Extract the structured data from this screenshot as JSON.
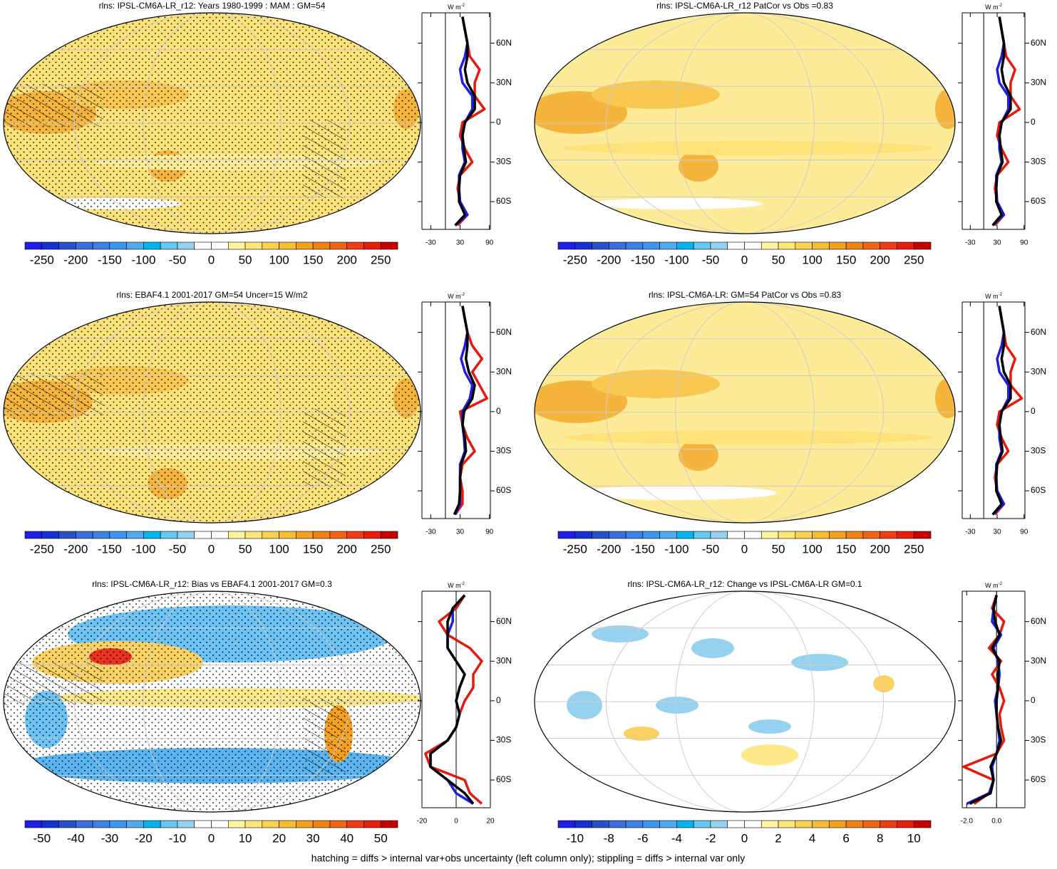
{
  "panels": [
    {
      "title": "rlns: IPSL-CM6A-LR_r12: Years 1980-1999 : MAM : GM=54",
      "colorbar": [
        -250,
        -200,
        -150,
        -100,
        -50,
        0,
        50,
        100,
        150,
        200,
        250
      ],
      "profile": {
        "xlim": [
          -48,
          92
        ],
        "xticks": [
          -30,
          30,
          90
        ],
        "lat": [
          -78,
          -70,
          -60,
          -50,
          -40,
          -30,
          -20,
          -10,
          0,
          10,
          20,
          30,
          40,
          50,
          60,
          70,
          80
        ],
        "series": [
          {
            "color": "#e6190f",
            "values": [
              25,
              45,
              30,
              25,
              30,
              55,
              40,
              30,
              35,
              80,
              60,
              60,
              70,
              50,
              45,
              40,
              35
            ]
          },
          {
            "color": "#1e1ee6",
            "values": [
              20,
              45,
              30,
              28,
              28,
              40,
              35,
              35,
              40,
              55,
              55,
              35,
              30,
              40,
              45,
              40,
              35
            ]
          },
          {
            "color": "#000000",
            "values": [
              20,
              40,
              28,
              28,
              30,
              42,
              38,
              35,
              40,
              60,
              60,
              45,
              40,
              45,
              45,
              40,
              35
            ]
          }
        ]
      }
    },
    {
      "title": "rlns: IPSL-CM6A-LR_r12 PatCor vs Obs =0.83",
      "colorbar": [
        -250,
        -200,
        -150,
        -100,
        -50,
        0,
        50,
        100,
        150,
        200,
        250
      ],
      "profile": {
        "xlim": [
          -48,
          92
        ],
        "xticks": [
          -30,
          30,
          90
        ],
        "lat": [
          -78,
          -70,
          -60,
          -50,
          -40,
          -30,
          -20,
          -10,
          0,
          10,
          20,
          30,
          40,
          50,
          60,
          70,
          80
        ],
        "series": [
          {
            "color": "#e6190f",
            "values": [
              25,
              45,
              30,
              25,
              30,
              55,
              40,
              30,
              35,
              80,
              60,
              60,
              70,
              50,
              45,
              40,
              35
            ]
          },
          {
            "color": "#1e1ee6",
            "values": [
              20,
              45,
              30,
              28,
              28,
              40,
              35,
              35,
              40,
              55,
              55,
              35,
              30,
              40,
              45,
              40,
              35
            ]
          },
          {
            "color": "#000000",
            "values": [
              20,
              40,
              28,
              28,
              30,
              42,
              38,
              35,
              40,
              60,
              60,
              45,
              40,
              45,
              45,
              40,
              35
            ]
          }
        ]
      }
    },
    {
      "title": "rlns: EBAF4.1 2001-2017 GM=54 Uncer=15 W/m2",
      "colorbar": [
        -250,
        -200,
        -150,
        -100,
        -50,
        0,
        50,
        100,
        150,
        200,
        250
      ],
      "profile": {
        "xlim": [
          -48,
          92
        ],
        "xticks": [
          -30,
          30,
          90
        ],
        "lat": [
          -78,
          -70,
          -60,
          -50,
          -40,
          -30,
          -20,
          -10,
          0,
          10,
          20,
          30,
          40,
          50,
          60,
          70,
          80
        ],
        "series": [
          {
            "color": "#e6190f",
            "values": [
              20,
              35,
              35,
              30,
              35,
              60,
              45,
              35,
              30,
              85,
              70,
              55,
              75,
              55,
              45,
              40,
              35
            ]
          },
          {
            "color": "#1e1ee6",
            "values": [
              20,
              30,
              30,
              30,
              30,
              40,
              38,
              35,
              35,
              50,
              55,
              40,
              32,
              40,
              45,
              40,
              35
            ]
          },
          {
            "color": "#000000",
            "values": [
              18,
              28,
              30,
              30,
              32,
              42,
              40,
              35,
              38,
              55,
              60,
              48,
              42,
              45,
              45,
              40,
              35
            ]
          }
        ]
      }
    },
    {
      "title": "rlns: IPSL-CM6A-LR: GM=54 PatCor vs Obs =0.83",
      "colorbar": [
        -250,
        -200,
        -150,
        -100,
        -50,
        0,
        50,
        100,
        150,
        200,
        250
      ],
      "profile": {
        "xlim": [
          -48,
          92
        ],
        "xticks": [
          -30,
          30,
          90
        ],
        "lat": [
          -78,
          -70,
          -60,
          -50,
          -40,
          -30,
          -20,
          -10,
          0,
          10,
          20,
          30,
          40,
          50,
          60,
          70,
          80
        ],
        "series": [
          {
            "color": "#e6190f",
            "values": [
              25,
              45,
              30,
              25,
              30,
              55,
              40,
              30,
              35,
              85,
              60,
              60,
              70,
              50,
              45,
              40,
              35
            ]
          },
          {
            "color": "#1e1ee6",
            "values": [
              20,
              45,
              30,
              28,
              28,
              40,
              35,
              35,
              40,
              55,
              55,
              35,
              30,
              40,
              45,
              40,
              35
            ]
          },
          {
            "color": "#000000",
            "values": [
              20,
              40,
              28,
              28,
              30,
              42,
              38,
              35,
              40,
              60,
              60,
              45,
              40,
              45,
              45,
              40,
              35
            ]
          }
        ]
      }
    },
    {
      "title": "rlns: IPSL-CM6A-LR_r12: Bias vs EBAF4.1 2001-2017 GM=0.3",
      "colorbar": [
        -50,
        -40,
        -30,
        -20,
        -10,
        0,
        10,
        20,
        30,
        40,
        50
      ],
      "profile": {
        "xlim": [
          -20,
          20
        ],
        "xticks": [
          -20,
          0,
          20
        ],
        "lat": [
          -78,
          -70,
          -60,
          -50,
          -40,
          -30,
          -20,
          -10,
          0,
          10,
          20,
          30,
          40,
          50,
          60,
          70,
          80
        ],
        "series": [
          {
            "color": "#e6190f",
            "values": [
              15,
              8,
              5,
              -15,
              -18,
              -5,
              0,
              2,
              5,
              10,
              10,
              15,
              8,
              -5,
              -10,
              0,
              5
            ]
          },
          {
            "color": "#1e1ee6",
            "values": [
              10,
              0,
              -5,
              -15,
              -15,
              -5,
              0,
              2,
              0,
              2,
              5,
              0,
              -5,
              -5,
              -2,
              -2,
              5
            ]
          },
          {
            "color": "#000000",
            "values": [
              10,
              5,
              -5,
              -15,
              -15,
              -5,
              0,
              2,
              0,
              2,
              5,
              0,
              -5,
              -5,
              -5,
              -2,
              5
            ]
          }
        ]
      }
    },
    {
      "title": "rlns: IPSL-CM6A-LR_r12: Change vs IPSL-CM6A-LR GM=0.1",
      "colorbar": [
        -10,
        -8,
        -6,
        -4,
        -2,
        0,
        2,
        4,
        6,
        8,
        10
      ],
      "profile": {
        "xlim": [
          -2.3,
          1.9
        ],
        "xticks": [
          {
            "value": -2,
            "label": "-2.0"
          },
          {
            "value": 0,
            "label": "0.0"
          }
        ],
        "lat": [
          -78,
          -70,
          -60,
          -50,
          -40,
          -30,
          -20,
          -10,
          0,
          10,
          20,
          30,
          40,
          50,
          60,
          70,
          80
        ],
        "series": [
          {
            "color": "#e6190f",
            "values": [
              -1.5,
              -0.5,
              -0.2,
              -2.2,
              0,
              0.5,
              0.3,
              0.2,
              0.5,
              0.2,
              -0.3,
              0.3,
              -0.5,
              0.2,
              0.5,
              -0.3,
              0
            ]
          },
          {
            "color": "#1e1ee6",
            "values": [
              -2,
              -0.5,
              -0.2,
              -0.3,
              0,
              0.2,
              0.1,
              0,
              -0.1,
              0.1,
              0.2,
              0.1,
              -0.2,
              0.3,
              -0.3,
              -0.2,
              0
            ]
          },
          {
            "color": "#000000",
            "values": [
              -1.8,
              -0.4,
              -0.2,
              -0.4,
              0,
              0.3,
              0.1,
              0,
              0,
              0.1,
              0.1,
              0.2,
              -0.3,
              0.2,
              -0.1,
              -0.2,
              0
            ]
          }
        ]
      }
    }
  ],
  "colorbar_colors": [
    "#1e1ee6",
    "#1432d2",
    "#2850c8",
    "#3c6edc",
    "#3c82e6",
    "#3c96f0",
    "#50aaf0",
    "#00b4f0",
    "#64c8f0",
    "#96d2f0",
    "#ffffff",
    "#ffffff",
    "#fff5a0",
    "#ffe678",
    "#fad250",
    "#f5be32",
    "#f5a01e",
    "#f08214",
    "#f06414",
    "#f03c14",
    "#e61e0a",
    "#c80000"
  ],
  "ylim": [
    -81,
    83
  ],
  "lat_ticks": [
    {
      "value": 60,
      "label": "60N"
    },
    {
      "value": 30,
      "label": "30N"
    },
    {
      "value": 0,
      "label": "0"
    },
    {
      "value": -30,
      "label": "30S"
    },
    {
      "value": -60,
      "label": "60S"
    }
  ],
  "unit": "W m",
  "unit_exp": "-2",
  "footnote": "hatching = diffs > internal var+obs uncertainty (left column only); stippling = diffs > internal var only"
}
